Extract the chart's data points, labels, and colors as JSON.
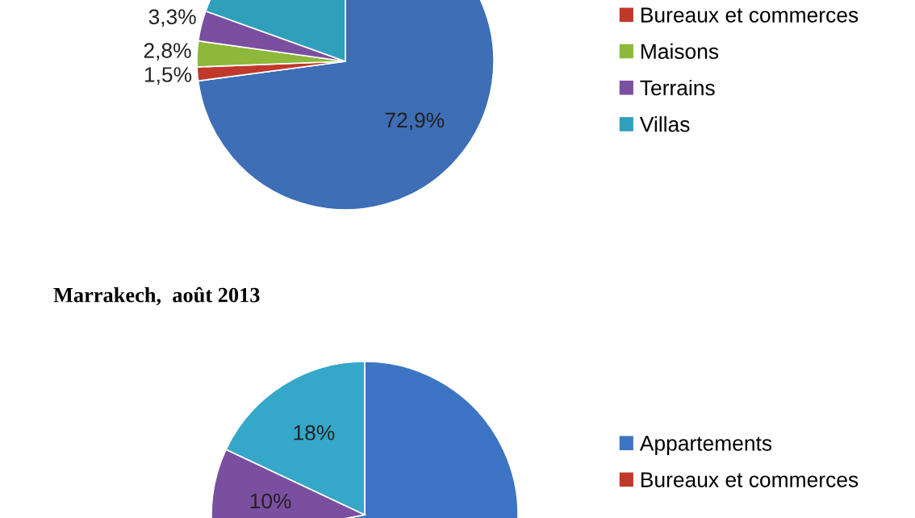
{
  "chart_data": [
    {
      "type": "pie",
      "categories": [
        null,
        "Bureaux et commerces",
        "Maisons",
        "Terrains",
        "Villas"
      ],
      "values": [
        72.9,
        1.5,
        2.8,
        3.3,
        19.5
      ],
      "value_labels": [
        "72,9%",
        "1,5%",
        "2,8%",
        "3,3%",
        null
      ],
      "colors": [
        "#3d6eb6",
        "#c0392b",
        "#8db83a",
        "#7b4fa0",
        "#2ea0bb"
      ],
      "legend": "right"
    },
    {
      "type": "pie",
      "title": "Marrakech,  août 2013",
      "categories": [
        "Appartements",
        "Bureaux et commerces",
        null,
        null,
        null
      ],
      "values": [
        72,
        null,
        null,
        10,
        18
      ],
      "value_labels": [
        null,
        null,
        null,
        "10%",
        "18%"
      ],
      "colors": [
        "#3d74c4",
        "#c0392b",
        "#8db83a",
        "#7b4fa0",
        "#35a7c8"
      ],
      "legend": "right"
    }
  ]
}
